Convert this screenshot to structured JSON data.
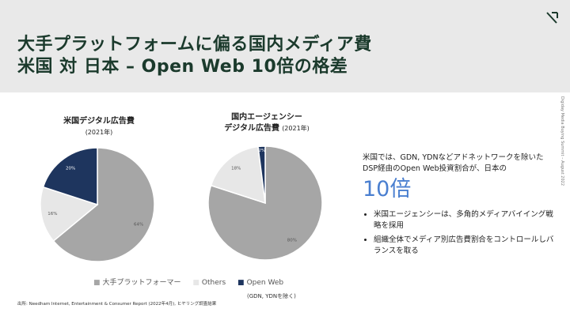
{
  "header": {
    "title_line1": "大手プラットフォームに偏る国内メディア費",
    "title_line2": "米国 対 日本 – Open Web 10倍の格差"
  },
  "side_text": "Digiday Media Buying Summit – August 2022",
  "colors": {
    "header_bg": "#e9e9e9",
    "title": "#1b3a2c",
    "platform": "#a6a6a6",
    "others": "#e7e7e7",
    "openweb": "#1e355e",
    "highlight": "#4a7fd0"
  },
  "chart_data": [
    {
      "type": "pie",
      "title": "米国デジタル広告費",
      "subtitle": "(2021年)",
      "slices": [
        {
          "name": "大手プラットフォーマー",
          "value": 64,
          "label": "64%"
        },
        {
          "name": "Others",
          "value": 16,
          "label": "16%"
        },
        {
          "name": "Open Web",
          "value": 20,
          "label": "20%"
        }
      ]
    },
    {
      "type": "pie",
      "title_line1": "国内エージェンシー",
      "title_line2": "デジタル広告費",
      "subtitle": "(2021年)",
      "slices": [
        {
          "name": "大手プラットフォーマー",
          "value": 80,
          "label": "80%"
        },
        {
          "name": "Others",
          "value": 18,
          "label": "18%"
        },
        {
          "name": "Open Web",
          "value": 2,
          "label": "2%"
        }
      ]
    }
  ],
  "legend": {
    "items": [
      {
        "label": "大手プラットフォーマー",
        "symbol": "■"
      },
      {
        "label": "Others",
        "symbol": "■"
      },
      {
        "label": "Open Web",
        "symbol": "■"
      }
    ]
  },
  "note": "(GDN, YDNを除く)",
  "source": "出所: Needham Internet, Entertainment & Consumer Report (2022年4月), ヒヤリング調査結果",
  "right_panel": {
    "text": "米国では、GDN, YDNなどアドネットワークを除いたDSP経由のOpen Web投資割合が、日本の",
    "highlight": "10倍",
    "bullets": [
      "米国エージェンシーは、多角的メディアバイイング戦略を採用",
      "組織全体でメディア別広告費割合をコントロールしバランスを取る"
    ]
  }
}
